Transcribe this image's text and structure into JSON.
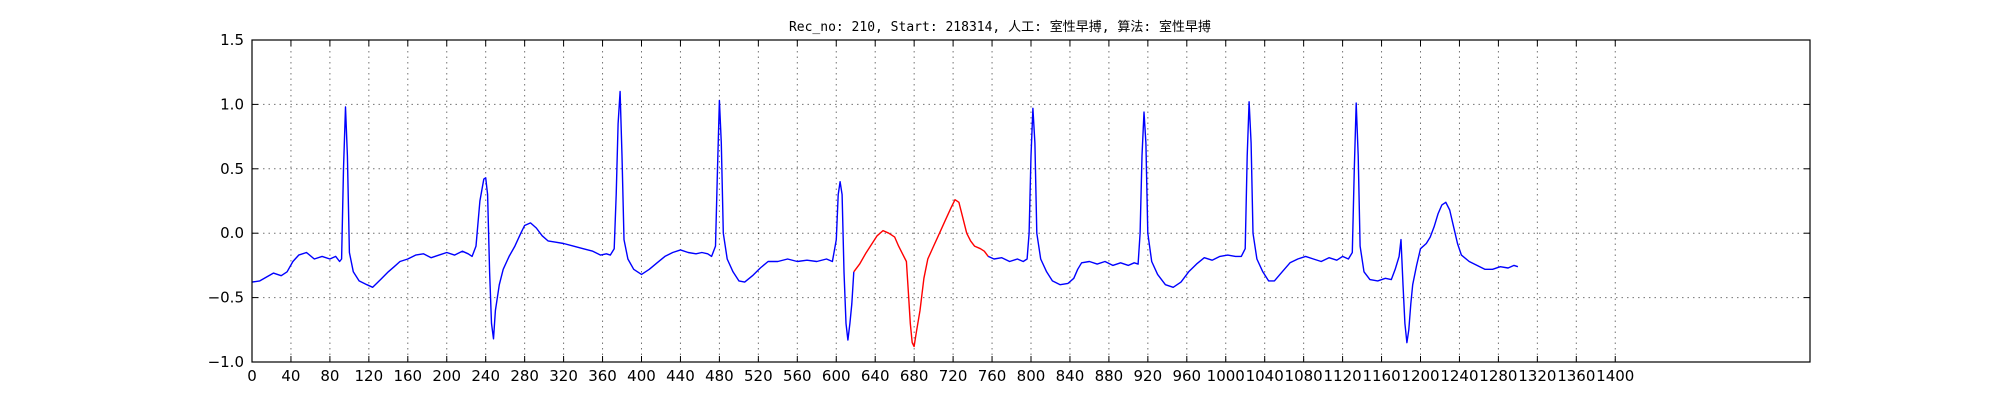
{
  "chart_data": {
    "type": "line",
    "title": "Rec_no: 210, Start: 218314, 人工: 室性早搏, 算法: 室性早搏",
    "xlabel": "",
    "ylabel": "",
    "xlim": [
      0,
      1600
    ],
    "ylim": [
      -1.0,
      1.5
    ],
    "grid": true,
    "x_ticks": [
      0,
      40,
      80,
      120,
      160,
      200,
      240,
      280,
      320,
      360,
      400,
      440,
      480,
      520,
      560,
      600,
      640,
      680,
      720,
      760,
      800,
      840,
      880,
      920,
      960,
      1000,
      1040,
      1080,
      1120,
      1160,
      1200,
      1240,
      1280,
      1320,
      1360,
      1400
    ],
    "x_tick_labels": [
      "0",
      "40",
      "80",
      "120",
      "160",
      "200",
      "240",
      "280",
      "320",
      "360",
      "400",
      "440",
      "480",
      "520",
      "560",
      "600",
      "640",
      "680",
      "720",
      "760",
      "800",
      "840",
      "880",
      "920",
      "960",
      "1000",
      "1040",
      "1080",
      "1120",
      "1160",
      "1200",
      "1240",
      "1280",
      "1320",
      "1360",
      "1400"
    ],
    "y_ticks": [
      -1.0,
      -0.5,
      0.0,
      0.5,
      1.0,
      1.5
    ],
    "y_tick_labels": [
      "−1.0",
      "−0.5",
      "0.0",
      "0.5",
      "1.0",
      "1.5"
    ],
    "series": [
      {
        "color": "#0000ff",
        "points": [
          [
            0,
            -0.38
          ],
          [
            8,
            -0.37
          ],
          [
            15,
            -0.34
          ],
          [
            22,
            -0.31
          ],
          [
            30,
            -0.33
          ],
          [
            36,
            -0.3
          ],
          [
            42,
            -0.22
          ],
          [
            48,
            -0.17
          ],
          [
            56,
            -0.15
          ],
          [
            64,
            -0.2
          ],
          [
            72,
            -0.18
          ],
          [
            80,
            -0.2
          ],
          [
            86,
            -0.18
          ],
          [
            90,
            -0.22
          ],
          [
            92,
            -0.2
          ],
          [
            94,
            0.5
          ],
          [
            96,
            0.98
          ],
          [
            98,
            0.6
          ],
          [
            100,
            -0.15
          ],
          [
            104,
            -0.3
          ],
          [
            110,
            -0.37
          ],
          [
            118,
            -0.4
          ],
          [
            124,
            -0.42
          ],
          [
            132,
            -0.36
          ],
          [
            140,
            -0.3
          ],
          [
            146,
            -0.26
          ],
          [
            152,
            -0.22
          ],
          [
            160,
            -0.2
          ],
          [
            168,
            -0.17
          ],
          [
            176,
            -0.16
          ],
          [
            184,
            -0.19
          ],
          [
            192,
            -0.17
          ],
          [
            200,
            -0.15
          ],
          [
            208,
            -0.17
          ],
          [
            216,
            -0.14
          ],
          [
            222,
            -0.16
          ],
          [
            226,
            -0.18
          ],
          [
            230,
            -0.1
          ],
          [
            234,
            0.25
          ],
          [
            238,
            0.42
          ],
          [
            240,
            0.43
          ],
          [
            242,
            0.3
          ],
          [
            244,
            -0.3
          ],
          [
            246,
            -0.7
          ],
          [
            248,
            -0.82
          ],
          [
            250,
            -0.6
          ],
          [
            254,
            -0.4
          ],
          [
            258,
            -0.28
          ],
          [
            264,
            -0.18
          ],
          [
            270,
            -0.1
          ],
          [
            276,
            0.0
          ],
          [
            280,
            0.06
          ],
          [
            286,
            0.08
          ],
          [
            292,
            0.04
          ],
          [
            298,
            -0.02
          ],
          [
            304,
            -0.06
          ],
          [
            312,
            -0.07
          ],
          [
            320,
            -0.08
          ],
          [
            330,
            -0.1
          ],
          [
            340,
            -0.12
          ],
          [
            350,
            -0.14
          ],
          [
            358,
            -0.17
          ],
          [
            364,
            -0.16
          ],
          [
            368,
            -0.17
          ],
          [
            372,
            -0.12
          ],
          [
            374,
            0.3
          ],
          [
            376,
            0.85
          ],
          [
            378,
            1.1
          ],
          [
            380,
            0.6
          ],
          [
            382,
            -0.05
          ],
          [
            386,
            -0.2
          ],
          [
            392,
            -0.28
          ],
          [
            400,
            -0.32
          ],
          [
            408,
            -0.28
          ],
          [
            416,
            -0.23
          ],
          [
            424,
            -0.18
          ],
          [
            432,
            -0.15
          ],
          [
            440,
            -0.13
          ],
          [
            448,
            -0.15
          ],
          [
            456,
            -0.16
          ],
          [
            462,
            -0.15
          ],
          [
            468,
            -0.16
          ],
          [
            472,
            -0.18
          ],
          [
            476,
            -0.1
          ],
          [
            478,
            0.5
          ],
          [
            480,
            1.03
          ],
          [
            482,
            0.7
          ],
          [
            484,
            0.0
          ],
          [
            488,
            -0.2
          ],
          [
            494,
            -0.3
          ],
          [
            500,
            -0.37
          ],
          [
            506,
            -0.38
          ],
          [
            514,
            -0.33
          ],
          [
            522,
            -0.27
          ],
          [
            530,
            -0.22
          ],
          [
            540,
            -0.22
          ],
          [
            550,
            -0.2
          ],
          [
            560,
            -0.22
          ],
          [
            570,
            -0.21
          ],
          [
            580,
            -0.22
          ],
          [
            590,
            -0.2
          ],
          [
            596,
            -0.22
          ],
          [
            600,
            -0.05
          ],
          [
            602,
            0.3
          ],
          [
            604,
            0.4
          ],
          [
            606,
            0.3
          ],
          [
            608,
            -0.3
          ],
          [
            610,
            -0.7
          ],
          [
            612,
            -0.83
          ],
          [
            614,
            -0.7
          ],
          [
            616,
            -0.55
          ],
          [
            618,
            -0.3
          ]
        ]
      },
      {
        "color": "#ff0000",
        "points": [
          [
            618,
            -0.3
          ],
          [
            624,
            -0.24
          ],
          [
            630,
            -0.16
          ],
          [
            636,
            -0.09
          ],
          [
            642,
            -0.02
          ],
          [
            648,
            0.02
          ],
          [
            654,
            0.0
          ],
          [
            660,
            -0.03
          ],
          [
            664,
            -0.1
          ],
          [
            668,
            -0.16
          ],
          [
            672,
            -0.22
          ],
          [
            674,
            -0.45
          ],
          [
            676,
            -0.7
          ],
          [
            678,
            -0.85
          ],
          [
            680,
            -0.88
          ],
          [
            682,
            -0.78
          ],
          [
            686,
            -0.6
          ],
          [
            690,
            -0.35
          ],
          [
            694,
            -0.2
          ],
          [
            700,
            -0.1
          ],
          [
            706,
            0.0
          ],
          [
            712,
            0.1
          ],
          [
            718,
            0.2
          ],
          [
            722,
            0.26
          ],
          [
            726,
            0.24
          ],
          [
            730,
            0.12
          ],
          [
            734,
            0.0
          ],
          [
            738,
            -0.06
          ],
          [
            742,
            -0.1
          ],
          [
            748,
            -0.12
          ],
          [
            752,
            -0.14
          ],
          [
            756,
            -0.18
          ]
        ]
      },
      {
        "color": "#0000ff",
        "points": [
          [
            756,
            -0.18
          ],
          [
            762,
            -0.2
          ],
          [
            770,
            -0.19
          ],
          [
            778,
            -0.22
          ],
          [
            786,
            -0.2
          ],
          [
            792,
            -0.22
          ],
          [
            796,
            -0.2
          ],
          [
            798,
            0.0
          ],
          [
            800,
            0.6
          ],
          [
            802,
            0.97
          ],
          [
            804,
            0.7
          ],
          [
            806,
            0.0
          ],
          [
            810,
            -0.2
          ],
          [
            816,
            -0.3
          ],
          [
            822,
            -0.37
          ],
          [
            830,
            -0.4
          ],
          [
            838,
            -0.39
          ],
          [
            844,
            -0.35
          ],
          [
            848,
            -0.28
          ],
          [
            852,
            -0.23
          ],
          [
            860,
            -0.22
          ],
          [
            868,
            -0.24
          ],
          [
            876,
            -0.22
          ],
          [
            884,
            -0.25
          ],
          [
            892,
            -0.23
          ],
          [
            900,
            -0.25
          ],
          [
            906,
            -0.23
          ],
          [
            910,
            -0.24
          ],
          [
            912,
            0.0
          ],
          [
            914,
            0.6
          ],
          [
            916,
            0.94
          ],
          [
            918,
            0.7
          ],
          [
            920,
            0.0
          ],
          [
            924,
            -0.22
          ],
          [
            930,
            -0.32
          ],
          [
            938,
            -0.4
          ],
          [
            946,
            -0.42
          ],
          [
            954,
            -0.38
          ],
          [
            962,
            -0.3
          ],
          [
            970,
            -0.24
          ],
          [
            978,
            -0.19
          ],
          [
            986,
            -0.21
          ],
          [
            994,
            -0.18
          ],
          [
            1002,
            -0.17
          ],
          [
            1010,
            -0.18
          ],
          [
            1016,
            -0.18
          ],
          [
            1020,
            -0.12
          ],
          [
            1022,
            0.6
          ],
          [
            1024,
            1.02
          ],
          [
            1026,
            0.7
          ],
          [
            1028,
            0.0
          ],
          [
            1032,
            -0.2
          ],
          [
            1038,
            -0.3
          ],
          [
            1044,
            -0.37
          ],
          [
            1050,
            -0.37
          ],
          [
            1058,
            -0.3
          ],
          [
            1066,
            -0.23
          ],
          [
            1074,
            -0.2
          ],
          [
            1082,
            -0.18
          ],
          [
            1090,
            -0.2
          ],
          [
            1098,
            -0.22
          ],
          [
            1106,
            -0.19
          ],
          [
            1114,
            -0.21
          ],
          [
            1120,
            -0.18
          ],
          [
            1126,
            -0.2
          ],
          [
            1130,
            -0.15
          ],
          [
            1132,
            0.5
          ],
          [
            1134,
            1.01
          ],
          [
            1136,
            0.6
          ],
          [
            1138,
            -0.1
          ],
          [
            1142,
            -0.3
          ],
          [
            1148,
            -0.36
          ],
          [
            1156,
            -0.37
          ],
          [
            1164,
            -0.35
          ],
          [
            1170,
            -0.36
          ],
          [
            1174,
            -0.28
          ],
          [
            1178,
            -0.18
          ],
          [
            1180,
            -0.05
          ],
          [
            1182,
            -0.4
          ],
          [
            1184,
            -0.7
          ],
          [
            1186,
            -0.85
          ],
          [
            1188,
            -0.75
          ],
          [
            1190,
            -0.55
          ],
          [
            1192,
            -0.4
          ],
          [
            1196,
            -0.25
          ],
          [
            1200,
            -0.12
          ],
          [
            1206,
            -0.08
          ],
          [
            1210,
            -0.03
          ],
          [
            1214,
            0.05
          ],
          [
            1218,
            0.15
          ],
          [
            1222,
            0.22
          ],
          [
            1226,
            0.24
          ],
          [
            1230,
            0.18
          ],
          [
            1234,
            0.05
          ],
          [
            1238,
            -0.08
          ],
          [
            1242,
            -0.17
          ],
          [
            1250,
            -0.22
          ],
          [
            1258,
            -0.25
          ],
          [
            1266,
            -0.28
          ],
          [
            1274,
            -0.28
          ],
          [
            1282,
            -0.26
          ],
          [
            1290,
            -0.27
          ],
          [
            1296,
            -0.25
          ],
          [
            1300,
            -0.26
          ]
        ]
      }
    ]
  }
}
